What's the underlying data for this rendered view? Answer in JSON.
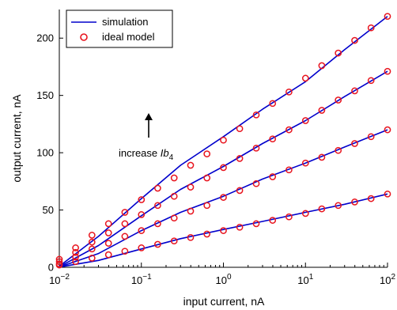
{
  "chart_data": {
    "type": "line",
    "xlabel": "input current, nA",
    "ylabel": "output current, nA",
    "xscale": "log",
    "xlim": [
      0.01,
      100
    ],
    "ylim": [
      0,
      225
    ],
    "x_ticks": [
      {
        "value": 0.01,
        "base": "10",
        "exp": "−2"
      },
      {
        "value": 0.1,
        "base": "10",
        "exp": "−1"
      },
      {
        "value": 1,
        "base": "10",
        "exp": "0"
      },
      {
        "value": 10,
        "base": "10",
        "exp": "1"
      },
      {
        "value": 100,
        "base": "10",
        "exp": "2"
      }
    ],
    "y_ticks": [
      0,
      50,
      100,
      150,
      200
    ],
    "legend": {
      "placement": "top-left",
      "entries": [
        {
          "label": "simulation",
          "style": "line",
          "color": "#0000cc"
        },
        {
          "label": "ideal model",
          "style": "circle",
          "color": "#e8141e"
        }
      ]
    },
    "annotation": {
      "text": "increase ",
      "symbol": "I",
      "sub_b": "b",
      "sub_4": "4",
      "x": 0.1,
      "y": 108
    },
    "series": [
      {
        "name": "simulation",
        "curve": 1,
        "x": [
          0.01,
          0.03,
          0.1,
          0.3,
          1,
          3,
          10,
          30,
          100
        ],
        "y": [
          1,
          27,
          60,
          89,
          114,
          138,
          162,
          190,
          219
        ]
      },
      {
        "name": "simulation",
        "curve": 2,
        "x": [
          0.01,
          0.03,
          0.1,
          0.3,
          1,
          3,
          10,
          30,
          100
        ],
        "y": [
          0.5,
          19,
          45,
          68,
          88,
          108,
          128,
          149,
          171
        ]
      },
      {
        "name": "simulation",
        "curve": 3,
        "x": [
          0.01,
          0.03,
          0.1,
          0.3,
          1,
          3,
          10,
          30,
          100
        ],
        "y": [
          0.3,
          12,
          32,
          48,
          62,
          77,
          91,
          105,
          120
        ]
      },
      {
        "name": "simulation",
        "curve": 4,
        "x": [
          0.01,
          0.03,
          0.1,
          0.3,
          1,
          3,
          10,
          30,
          100
        ],
        "y": [
          0.2,
          6,
          16,
          25,
          33,
          40,
          48,
          55,
          64
        ]
      },
      {
        "name": "ideal model",
        "curve": 1,
        "x": [
          0.01,
          0.0158,
          0.025,
          0.0398,
          0.063,
          0.1,
          0.158,
          0.251,
          0.398,
          0.63,
          1,
          1.58,
          2.51,
          3.98,
          6.3,
          10,
          15.8,
          25.1,
          39.8,
          63,
          100
        ],
        "y": [
          7,
          17,
          28,
          38,
          48,
          59,
          69,
          78,
          89,
          99,
          111,
          121,
          133,
          143,
          153,
          165,
          176,
          187,
          198,
          209,
          219
        ]
      },
      {
        "name": "ideal model",
        "curve": 2,
        "x": [
          0.01,
          0.0158,
          0.025,
          0.0398,
          0.063,
          0.1,
          0.158,
          0.251,
          0.398,
          0.63,
          1,
          1.58,
          2.51,
          3.98,
          6.3,
          10,
          15.8,
          25.1,
          39.8,
          63,
          100
        ],
        "y": [
          5,
          13,
          22,
          30,
          38,
          46,
          54,
          62,
          70,
          78,
          87,
          95,
          104,
          112,
          120,
          128,
          137,
          146,
          154,
          163,
          171
        ]
      },
      {
        "name": "ideal model",
        "curve": 3,
        "x": [
          0.01,
          0.0158,
          0.025,
          0.0398,
          0.063,
          0.1,
          0.158,
          0.251,
          0.398,
          0.63,
          1,
          1.58,
          2.51,
          3.98,
          6.3,
          10,
          15.8,
          25.1,
          39.8,
          63,
          100
        ],
        "y": [
          3,
          9,
          16,
          21,
          27,
          32,
          38,
          43,
          49,
          54,
          61,
          67,
          73,
          79,
          85,
          91,
          96,
          102,
          108,
          114,
          120
        ]
      },
      {
        "name": "ideal model",
        "curve": 4,
        "x": [
          0.01,
          0.0158,
          0.025,
          0.0398,
          0.063,
          0.1,
          0.158,
          0.251,
          0.398,
          0.63,
          1,
          1.58,
          2.51,
          3.98,
          6.3,
          10,
          15.8,
          25.1,
          39.8,
          63,
          100
        ],
        "y": [
          2,
          5,
          8,
          11,
          14,
          17,
          20,
          23,
          26,
          29,
          32,
          35,
          38,
          41,
          44,
          47,
          51,
          54,
          57,
          60,
          64
        ]
      }
    ]
  }
}
